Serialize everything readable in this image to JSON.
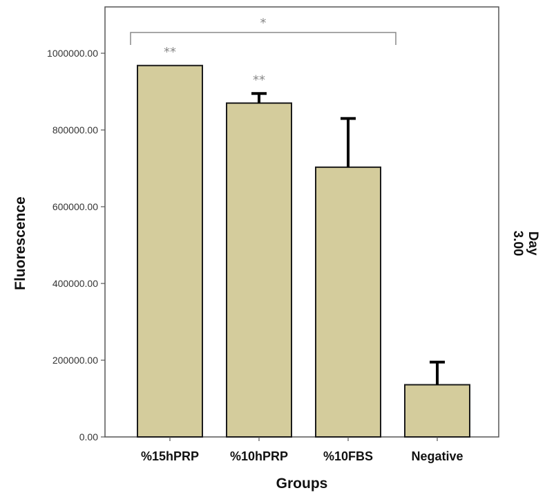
{
  "chart_data": {
    "type": "bar",
    "xlabel": "Groups",
    "ylabel": "Fluorescence",
    "facet_label_line1": "Day",
    "facet_label_line2": "3.00",
    "ylim": [
      0,
      1110000
    ],
    "yticks": [
      0,
      200000,
      400000,
      600000,
      800000,
      1000000
    ],
    "ytick_labels": [
      "0.00",
      "200000.00",
      "400000.00",
      "600000.00",
      "800000.00",
      "1000000.00"
    ],
    "categories": [
      "%15hPRP",
      "%10hPRP",
      "%10FBS",
      "Negative"
    ],
    "values": [
      968000,
      870000,
      703000,
      136000
    ],
    "error_upper": [
      968000,
      895000,
      830000,
      195000
    ],
    "significance": [
      "**",
      "**",
      "",
      ""
    ],
    "bracket": {
      "from_category": 0,
      "to_category": 2,
      "label": "*"
    },
    "bar_color": "#d4cc9c",
    "bar_edge_color": "#1a1a1a",
    "grid": false
  }
}
